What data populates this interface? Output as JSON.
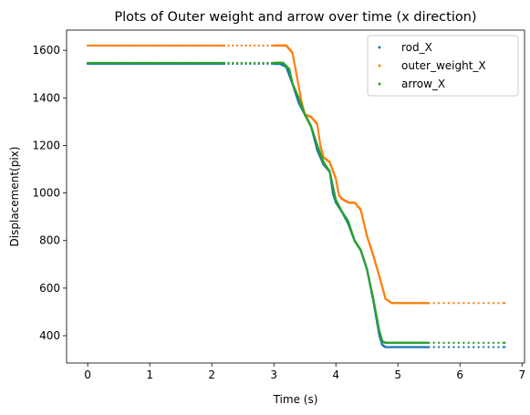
{
  "chart_data": {
    "type": "scatter",
    "title": "Plots of Outer weight and arrow over time (x direction)",
    "xlabel": "Time (s)",
    "ylabel": "Displacement(pix)",
    "xlim": [
      -0.34,
      7.04
    ],
    "ylim": [
      285,
      1685
    ],
    "xticks": [
      0,
      1,
      2,
      3,
      4,
      5,
      6,
      7
    ],
    "yticks": [
      400,
      600,
      800,
      1000,
      1200,
      1400,
      1600
    ],
    "grid": false,
    "legend_position": "top-right",
    "series": [
      {
        "name": "rod_X",
        "color": "#1f77b4",
        "anchors": [
          [
            0,
            1543
          ],
          [
            3.1,
            1543
          ],
          [
            3.2,
            1530
          ],
          [
            3.3,
            1460
          ],
          [
            3.4,
            1380
          ],
          [
            3.5,
            1330
          ],
          [
            3.6,
            1280
          ],
          [
            3.7,
            1180
          ],
          [
            3.8,
            1120
          ],
          [
            3.9,
            1090
          ],
          [
            3.95,
            1000
          ],
          [
            4.0,
            960
          ],
          [
            4.1,
            920
          ],
          [
            4.2,
            870
          ],
          [
            4.3,
            800
          ],
          [
            4.4,
            760
          ],
          [
            4.5,
            680
          ],
          [
            4.6,
            550
          ],
          [
            4.7,
            400
          ],
          [
            4.75,
            360
          ],
          [
            4.8,
            352
          ],
          [
            6.72,
            352
          ]
        ]
      },
      {
        "name": "outer_weight_X",
        "color": "#ff7f0e",
        "anchors": [
          [
            0,
            1620
          ],
          [
            3.2,
            1620
          ],
          [
            3.3,
            1590
          ],
          [
            3.4,
            1450
          ],
          [
            3.45,
            1380
          ],
          [
            3.5,
            1330
          ],
          [
            3.6,
            1320
          ],
          [
            3.7,
            1290
          ],
          [
            3.75,
            1200
          ],
          [
            3.8,
            1150
          ],
          [
            3.9,
            1130
          ],
          [
            4.0,
            1060
          ],
          [
            4.05,
            990
          ],
          [
            4.1,
            975
          ],
          [
            4.2,
            960
          ],
          [
            4.3,
            960
          ],
          [
            4.4,
            930
          ],
          [
            4.5,
            820
          ],
          [
            4.6,
            740
          ],
          [
            4.7,
            650
          ],
          [
            4.8,
            555
          ],
          [
            4.9,
            537
          ],
          [
            6.72,
            537
          ]
        ]
      },
      {
        "name": "arrow_X",
        "color": "#2ca02c",
        "anchors": [
          [
            0,
            1547
          ],
          [
            3.15,
            1547
          ],
          [
            3.25,
            1520
          ],
          [
            3.3,
            1460
          ],
          [
            3.4,
            1400
          ],
          [
            3.5,
            1330
          ],
          [
            3.6,
            1280
          ],
          [
            3.7,
            1200
          ],
          [
            3.8,
            1130
          ],
          [
            3.9,
            1090
          ],
          [
            3.95,
            1030
          ],
          [
            4.0,
            970
          ],
          [
            4.1,
            920
          ],
          [
            4.2,
            880
          ],
          [
            4.3,
            800
          ],
          [
            4.4,
            760
          ],
          [
            4.5,
            680
          ],
          [
            4.6,
            560
          ],
          [
            4.7,
            420
          ],
          [
            4.75,
            375
          ],
          [
            4.8,
            370
          ],
          [
            6.72,
            370
          ]
        ]
      }
    ]
  }
}
